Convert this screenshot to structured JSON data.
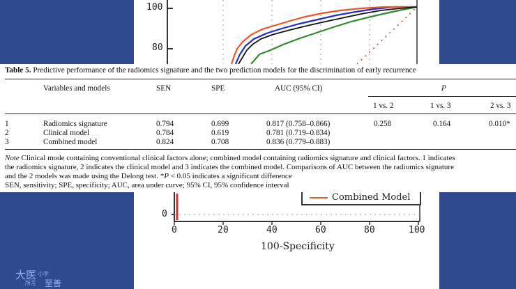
{
  "top_chart": {
    "tick_labels": [
      "100",
      "80"
    ],
    "colors": {
      "orange": "#e8572a",
      "blue": "#1f2fc8",
      "green": "#2f8a2f",
      "red": "#d23030"
    }
  },
  "table": {
    "caption_label": "Table 5.",
    "caption_text": "Predictive performance of the radiomics signature and the two prediction models for the discrimination of early recurrence",
    "headers": {
      "variables": "Variables and models",
      "sen": "SEN",
      "spe": "SPE",
      "auc": "AUC (95% CI)",
      "p": "P",
      "p_sub": [
        "1 vs. 2",
        "1 vs. 3",
        "2 vs. 3"
      ]
    },
    "rows": [
      {
        "num": "1",
        "name": "Radiomics signature",
        "sen": "0.794",
        "spe": "0.699",
        "auc": "0.817 (0.758–0.866)",
        "p12": "0.258",
        "p13": "0.164",
        "p23": "0.010*"
      },
      {
        "num": "2",
        "name": "Clinical model",
        "sen": "0.784",
        "spe": "0.619",
        "auc": "0.781 (0.719–0.834)",
        "p12": "",
        "p13": "",
        "p23": ""
      },
      {
        "num": "3",
        "name": "Combined model",
        "sen": "0.824",
        "spe": "0.708",
        "auc": "0.836 (0.779–0.883)",
        "p12": "",
        "p13": "",
        "p23": ""
      }
    ],
    "note_label": "Note",
    "note_line1": " Clinical mode containing conventional clinical factors alone; combined model containing radiomics signature and clinical factors. 1 indicates",
    "note_line2": "the radiomics signature, 2 indicates the clinical model and 3 indicates the combined model. Comparisons of AUC between the radiomics signature",
    "note_line3_a": "and the 2 models was made using the Delong test. *",
    "note_line3_p": "P",
    "note_line3_b": " < 0.05 indicates a significant difference",
    "note_line4": "SEN, sensitivity; SPE, specificity; AUC, area under curve; 95% CI, 95% confidence interval"
  },
  "bottom_chart": {
    "legend": "Combined Model",
    "y_tick": "0",
    "x_ticks": [
      "0",
      "20",
      "40",
      "60",
      "80",
      "100"
    ],
    "x_label": "100-Specificity"
  },
  "logo": {
    "text1": "大医",
    "text2": "小字",
    "text3": "所言",
    "text4": "至善"
  }
}
